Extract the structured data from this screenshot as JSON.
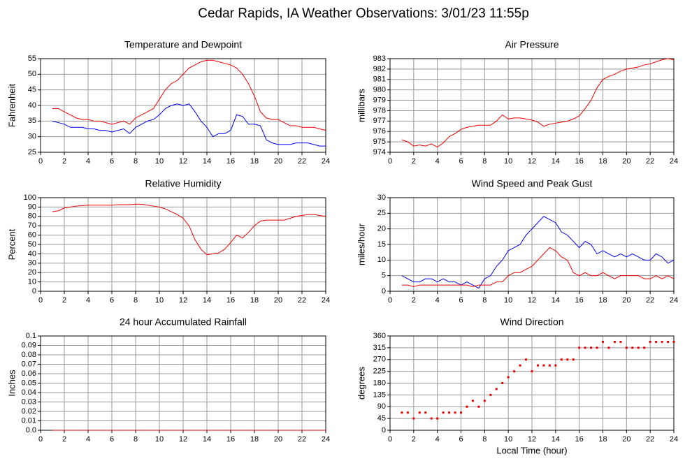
{
  "title": "Cedar Rapids, IA Weather Observations: 3/01/23 11:55p",
  "chart_data": [
    {
      "type": "line",
      "title": "Temperature and Dewpoint",
      "ylabel": "Fahrenheit",
      "grid": true,
      "xlim": [
        0,
        24
      ],
      "xticks": [
        0,
        2,
        4,
        6,
        8,
        10,
        12,
        14,
        16,
        18,
        20,
        22,
        24
      ],
      "ylim": [
        25,
        55
      ],
      "yticks": [
        25,
        30,
        35,
        40,
        45,
        50,
        55
      ],
      "x": [
        1,
        1.5,
        2,
        2.5,
        3,
        3.5,
        4,
        4.5,
        5,
        5.5,
        6,
        6.5,
        7,
        7.5,
        8,
        8.5,
        9,
        9.5,
        10,
        10.5,
        11,
        11.5,
        12,
        12.5,
        13,
        13.5,
        14,
        14.5,
        15,
        15.5,
        16,
        16.5,
        17,
        17.5,
        18,
        18.5,
        19,
        19.5,
        20,
        20.5,
        21,
        21.5,
        22,
        22.5,
        23,
        23.5,
        24
      ],
      "series": [
        {
          "color": "#ee0000",
          "values": [
            39,
            39,
            38,
            37,
            36,
            35.5,
            35.5,
            35,
            35,
            34.5,
            34,
            34.5,
            35,
            34,
            36,
            37,
            38,
            39,
            42,
            45,
            47,
            48,
            50,
            52,
            53,
            54,
            54.5,
            54.5,
            54,
            53.5,
            53,
            52,
            50,
            47,
            43,
            38,
            36,
            35.5,
            35.5,
            34.5,
            33.5,
            33.5,
            33,
            33,
            33,
            32.5,
            32
          ]
        },
        {
          "color": "#0000ee",
          "values": [
            35,
            34.5,
            34,
            33,
            33,
            33,
            32.5,
            32.5,
            32,
            32,
            31.5,
            32,
            32.5,
            31,
            33,
            34,
            35,
            35.5,
            37,
            39,
            40,
            40.5,
            40,
            40.5,
            38,
            35,
            33,
            30,
            31,
            31,
            32,
            37,
            36.5,
            34,
            34,
            33.5,
            29,
            28,
            27.5,
            27.5,
            27.5,
            28,
            28,
            28,
            27.5,
            27,
            27
          ]
        }
      ]
    },
    {
      "type": "line",
      "title": "Air Pressure",
      "ylabel": "millibars",
      "grid": true,
      "xlim": [
        0,
        24
      ],
      "xticks": [
        0,
        2,
        4,
        6,
        8,
        10,
        12,
        14,
        16,
        18,
        20,
        22,
        24
      ],
      "ylim": [
        974,
        983
      ],
      "yticks": [
        974,
        975,
        976,
        977,
        978,
        979,
        980,
        981,
        982,
        983
      ],
      "x": [
        1,
        1.5,
        2,
        2.5,
        3,
        3.5,
        4,
        4.5,
        5,
        5.5,
        6,
        6.5,
        7,
        7.5,
        8,
        8.5,
        9,
        9.5,
        10,
        10.5,
        11,
        11.5,
        12,
        12.5,
        13,
        13.5,
        14,
        14.5,
        15,
        15.5,
        16,
        16.5,
        17,
        17.5,
        18,
        18.5,
        19,
        19.5,
        20,
        20.5,
        21,
        21.5,
        22,
        22.5,
        23,
        23.5,
        24
      ],
      "series": [
        {
          "color": "#ee0000",
          "values": [
            975.2,
            975,
            974.6,
            974.7,
            974.6,
            974.8,
            974.5,
            974.9,
            975.5,
            975.8,
            976.2,
            976.4,
            976.5,
            976.6,
            976.6,
            976.6,
            977,
            977.6,
            977.2,
            977.3,
            977.3,
            977.2,
            977.1,
            976.9,
            976.5,
            976.7,
            976.8,
            976.9,
            977,
            977.2,
            977.5,
            978.2,
            979,
            980.2,
            981,
            981.3,
            981.5,
            981.8,
            982,
            982.1,
            982.2,
            982.4,
            982.5,
            982.7,
            982.9,
            983,
            982.9
          ]
        }
      ]
    },
    {
      "type": "line",
      "title": "Relative Humidity",
      "ylabel": "Percent",
      "grid": true,
      "xlim": [
        0,
        24
      ],
      "xticks": [
        0,
        2,
        4,
        6,
        8,
        10,
        12,
        14,
        16,
        18,
        20,
        22,
        24
      ],
      "ylim": [
        0,
        100
      ],
      "yticks": [
        0,
        10,
        20,
        30,
        40,
        50,
        60,
        70,
        80,
        90,
        100
      ],
      "x": [
        1,
        1.5,
        2,
        2.5,
        3,
        3.5,
        4,
        4.5,
        5,
        5.5,
        6,
        6.5,
        7,
        7.5,
        8,
        8.5,
        9,
        9.5,
        10,
        10.5,
        11,
        11.5,
        12,
        12.5,
        13,
        13.5,
        14,
        14.5,
        15,
        15.5,
        16,
        16.5,
        17,
        17.5,
        18,
        18.5,
        19,
        19.5,
        20,
        20.5,
        21,
        21.5,
        22,
        22.5,
        23,
        23.5,
        24
      ],
      "series": [
        {
          "color": "#ee0000",
          "values": [
            85,
            86,
            89,
            90,
            91,
            91.5,
            92,
            92,
            92,
            92,
            92,
            92.5,
            92.5,
            92.5,
            93,
            93,
            92,
            91,
            90,
            88,
            85,
            82,
            78,
            70,
            55,
            45,
            39,
            40,
            41,
            45,
            52,
            60,
            57,
            63,
            70,
            75,
            76,
            76,
            76,
            76,
            78,
            80,
            81,
            82,
            82,
            81,
            80
          ]
        }
      ]
    },
    {
      "type": "line",
      "title": "Wind Speed and Peak Gust",
      "ylabel": "miles/hour",
      "grid": true,
      "xlim": [
        0,
        24
      ],
      "xticks": [
        0,
        2,
        4,
        6,
        8,
        10,
        12,
        14,
        16,
        18,
        20,
        22,
        24
      ],
      "ylim": [
        0,
        30
      ],
      "yticks": [
        0,
        5,
        10,
        15,
        20,
        25,
        30
      ],
      "x": [
        1,
        1.5,
        2,
        2.5,
        3,
        3.5,
        4,
        4.5,
        5,
        5.5,
        6,
        6.5,
        7,
        7.5,
        8,
        8.5,
        9,
        9.5,
        10,
        10.5,
        11,
        11.5,
        12,
        12.5,
        13,
        13.5,
        14,
        14.5,
        15,
        15.5,
        16,
        16.5,
        17,
        17.5,
        18,
        18.5,
        19,
        19.5,
        20,
        20.5,
        21,
        21.5,
        22,
        22.5,
        23,
        23.5,
        24
      ],
      "series": [
        {
          "color": "#0000ee",
          "values": [
            5,
            4,
            3,
            3,
            4,
            4,
            3,
            4,
            3,
            3,
            2,
            3,
            2,
            1,
            4,
            5,
            8,
            10,
            13,
            14,
            15,
            18,
            20,
            22,
            24,
            23,
            22,
            19,
            18,
            16,
            14,
            16,
            15,
            12,
            13,
            12,
            11,
            12,
            11,
            12,
            11,
            10,
            10,
            12,
            11,
            9,
            10
          ]
        },
        {
          "color": "#ee0000",
          "values": [
            2,
            2,
            1.5,
            2,
            2,
            2,
            2,
            2,
            2,
            2,
            2,
            2,
            1.5,
            2,
            2,
            2,
            3,
            3,
            5,
            6,
            6,
            7,
            8,
            10,
            12,
            14,
            13,
            11,
            10,
            6,
            5,
            6,
            5,
            5,
            6,
            5,
            4,
            5,
            5,
            5,
            5,
            4,
            4,
            5,
            4,
            5,
            4
          ]
        }
      ]
    },
    {
      "type": "line",
      "title": "24 hour Accumulated Rainfall",
      "ylabel": "Inches",
      "grid": true,
      "xlim": [
        0,
        24
      ],
      "xticks": [
        0,
        2,
        4,
        6,
        8,
        10,
        12,
        14,
        16,
        18,
        20,
        22,
        24
      ],
      "ylim": [
        0,
        0.1
      ],
      "yticks": [
        {
          "value": 0,
          "label": "0.0"
        },
        0.01,
        0.02,
        0.03,
        0.04,
        0.05,
        0.06,
        0.07,
        0.08,
        0.09,
        0.1
      ],
      "x": [
        1,
        24
      ],
      "series": [
        {
          "color": "#ee0000",
          "values": [
            0,
            0
          ]
        }
      ]
    },
    {
      "type": "scatter",
      "title": "Wind Direction",
      "ylabel": "degrees",
      "xlabel": "Local Time (hour)",
      "grid": true,
      "xlim": [
        0,
        24
      ],
      "xticks": [
        0,
        2,
        4,
        6,
        8,
        10,
        12,
        14,
        16,
        18,
        20,
        22,
        24
      ],
      "ylim": [
        0,
        360
      ],
      "yticks": [
        0,
        45,
        90,
        135,
        180,
        225,
        270,
        315,
        360
      ],
      "x": [
        1,
        1.5,
        2,
        2.5,
        3,
        3.5,
        4,
        4.5,
        5,
        5.5,
        6,
        6.5,
        7,
        7.5,
        8,
        8.5,
        9,
        9.5,
        10,
        10.5,
        11,
        11.5,
        12,
        12.5,
        13,
        13.5,
        14,
        14.5,
        15,
        15.5,
        16,
        16.5,
        17,
        17.5,
        18,
        18.5,
        19,
        19.5,
        20,
        20.5,
        21,
        21.5,
        22,
        22.5,
        23,
        23.5,
        24
      ],
      "series": [
        {
          "color": "#ee0000",
          "values": [
            67.5,
            67.5,
            45,
            67.5,
            67.5,
            45,
            45,
            67.5,
            67.5,
            67.5,
            67.5,
            90,
            112.5,
            90,
            112.5,
            135,
            157.5,
            180,
            202.5,
            225,
            247.5,
            270,
            225,
            247.5,
            247.5,
            247.5,
            247.5,
            270,
            270,
            270,
            315,
            315,
            315,
            315,
            337.5,
            315,
            337.5,
            337.5,
            315,
            315,
            315,
            315,
            337.5,
            337.5,
            337.5,
            337.5,
            337.5
          ]
        }
      ]
    }
  ]
}
